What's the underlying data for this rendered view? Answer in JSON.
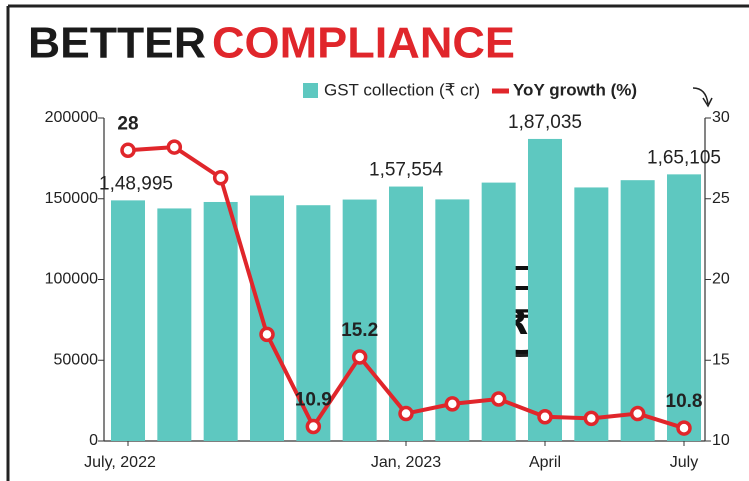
{
  "chart_data": {
    "type": "bar-line",
    "title": [
      "BETTER",
      "COMPLIANCE"
    ],
    "categories": [
      "July, 2022",
      null,
      null,
      null,
      null,
      null,
      "Jan, 2023",
      null,
      null,
      "April",
      null,
      null,
      "July"
    ],
    "series": [
      {
        "name": "GST collection (₹ cr)",
        "type": "bar",
        "color": "#5ec8c0",
        "axis": "y",
        "values": [
          148995,
          144000,
          148000,
          152000,
          146000,
          149500,
          157554,
          149600,
          160000,
          187035,
          157000,
          161500,
          165105
        ],
        "value_labels": [
          "1,48,995",
          null,
          null,
          null,
          null,
          null,
          "1,57,554",
          null,
          null,
          "1,87,035",
          null,
          null,
          "1,65,105"
        ]
      },
      {
        "name": "YoY growth (%)",
        "type": "line",
        "color": "#e0262b",
        "axis": "y2",
        "values": [
          28,
          28.2,
          26.3,
          16.6,
          10.9,
          15.2,
          11.7,
          12.3,
          12.6,
          11.5,
          11.4,
          11.7,
          10.8
        ],
        "value_labels": [
          "28",
          null,
          null,
          null,
          "10.9",
          "15.2",
          null,
          null,
          null,
          null,
          null,
          null,
          "10.8"
        ]
      }
    ],
    "ylim": [
      0,
      200000
    ],
    "yticks": [
      0,
      50000,
      100000,
      150000,
      200000
    ],
    "y2lim": [
      10,
      30
    ],
    "y2ticks": [
      10,
      15,
      20,
      25,
      30
    ]
  }
}
